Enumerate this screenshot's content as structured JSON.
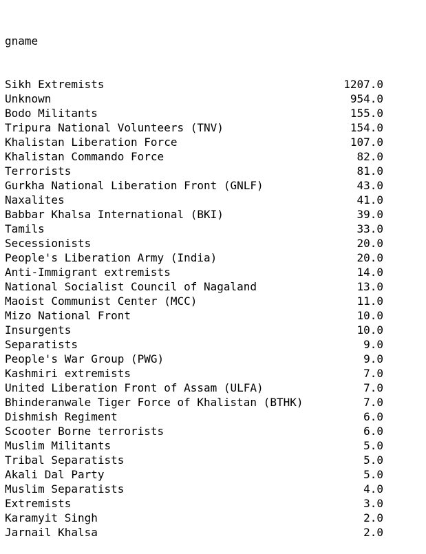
{
  "series_header": "gname",
  "rows": [
    {
      "name": "Sikh Extremists",
      "value": "1207.0"
    },
    {
      "name": "Unknown",
      "value": "954.0"
    },
    {
      "name": "Bodo Militants",
      "value": "155.0"
    },
    {
      "name": "Tripura National Volunteers (TNV)",
      "value": "154.0"
    },
    {
      "name": "Khalistan Liberation Force",
      "value": "107.0"
    },
    {
      "name": "Khalistan Commando Force",
      "value": "82.0"
    },
    {
      "name": "Terrorists",
      "value": "81.0"
    },
    {
      "name": "Gurkha National Liberation Front (GNLF)",
      "value": "43.0"
    },
    {
      "name": "Naxalites",
      "value": "41.0"
    },
    {
      "name": "Babbar Khalsa International (BKI)",
      "value": "39.0"
    },
    {
      "name": "Tamils",
      "value": "33.0"
    },
    {
      "name": "Secessionists",
      "value": "20.0"
    },
    {
      "name": "People's Liberation Army (India)",
      "value": "20.0"
    },
    {
      "name": "Anti-Immigrant extremists",
      "value": "14.0"
    },
    {
      "name": "National Socialist Council of Nagaland",
      "value": "13.0"
    },
    {
      "name": "Maoist Communist Center (MCC)",
      "value": "11.0"
    },
    {
      "name": "Mizo National Front",
      "value": "10.0"
    },
    {
      "name": "Insurgents",
      "value": "10.0"
    },
    {
      "name": "Separatists",
      "value": "9.0"
    },
    {
      "name": "People's War Group (PWG)",
      "value": "9.0"
    },
    {
      "name": "Kashmiri extremists",
      "value": "7.0"
    },
    {
      "name": "United Liberation Front of Assam (ULFA)",
      "value": "7.0"
    },
    {
      "name": "Bhinderanwale Tiger Force of Khalistan (BTHK)",
      "value": "7.0"
    },
    {
      "name": "Dishmish Regiment",
      "value": "6.0"
    },
    {
      "name": "Scooter Borne terrorists",
      "value": "6.0"
    },
    {
      "name": "Muslim Militants",
      "value": "5.0"
    },
    {
      "name": "Tribal Separatists",
      "value": "5.0"
    },
    {
      "name": "Akali Dal Party",
      "value": "5.0"
    },
    {
      "name": "Muslim Separatists",
      "value": "4.0"
    },
    {
      "name": "Extremists",
      "value": "3.0"
    },
    {
      "name": "Karamyit Singh",
      "value": "2.0"
    },
    {
      "name": "Jarnail Khalsa",
      "value": "2.0"
    }
  ]
}
